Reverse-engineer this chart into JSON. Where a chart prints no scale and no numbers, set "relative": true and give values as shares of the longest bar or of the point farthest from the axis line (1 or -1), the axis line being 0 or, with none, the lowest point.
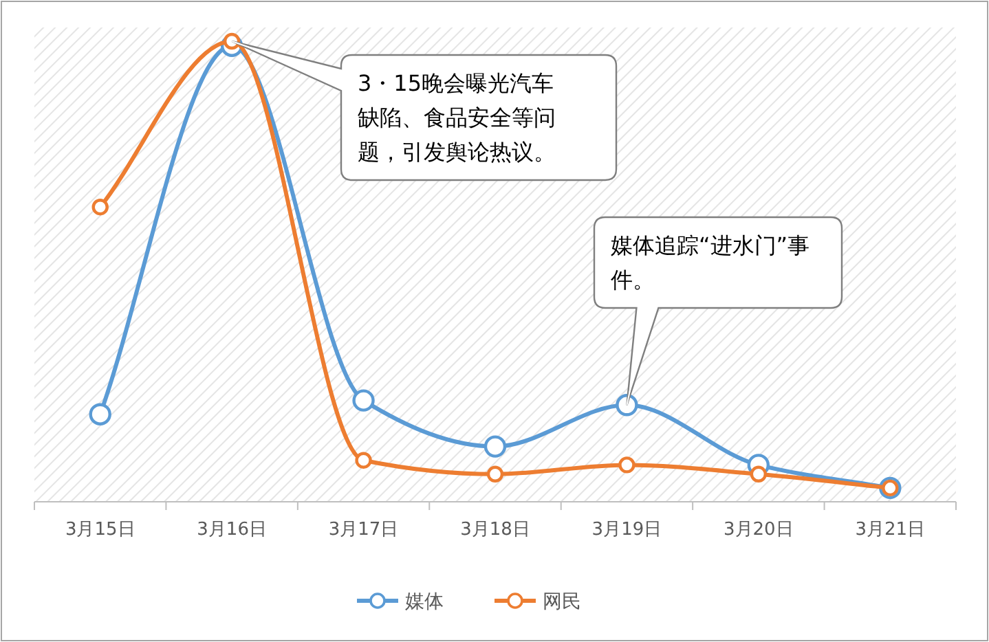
{
  "chart_data": {
    "type": "line",
    "relative": true,
    "categories": [
      "3月15日",
      "3月16日",
      "3月17日",
      "3月18日",
      "3月19日",
      "3月20日",
      "3月21日"
    ],
    "series": [
      {
        "name": "媒体",
        "color": "#5b9bd5",
        "values": [
          0.19,
          0.99,
          0.22,
          0.12,
          0.21,
          0.08,
          0.03
        ]
      },
      {
        "name": "网民",
        "color": "#ed7d31",
        "values": [
          0.64,
          1,
          0.09,
          0.06,
          0.08,
          0.06,
          0.03
        ]
      }
    ],
    "marker": "circle",
    "legend": "bottom",
    "annotations": [
      {
        "text": "3・15晚会曝光汽车缺陷、食品安全等问题，引发舆论热议。",
        "x": "3月16日",
        "y": 1
      },
      {
        "text": "媒体追踪“进水门”事件。",
        "x": "3月19日",
        "y": 0.21
      }
    ]
  }
}
